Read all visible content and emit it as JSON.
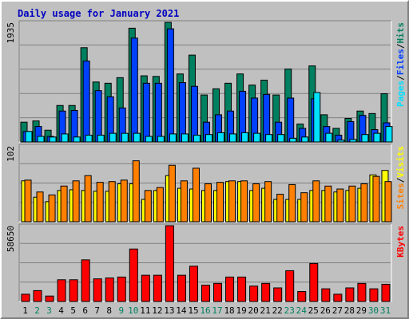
{
  "title": "Daily usage for January 2021",
  "colors": {
    "hits": "#00805f",
    "files": "#0040ff",
    "pages": "#00e0ff",
    "visits": "#ffff00",
    "sites": "#ff8000",
    "kbytes": "#ff0000",
    "weekend_label": "#00805f",
    "weekday_label": "#000000"
  },
  "chart_data": [
    {
      "type": "bar",
      "panel": "top",
      "max_label": "1935",
      "ylim": [
        0,
        1935
      ],
      "legend": [
        "Hits",
        "Files",
        "Pages"
      ],
      "legend_separator": "/",
      "categories": [
        "1",
        "2",
        "3",
        "4",
        "5",
        "6",
        "7",
        "8",
        "9",
        "10",
        "11",
        "12",
        "13",
        "14",
        "15",
        "16",
        "17",
        "18",
        "19",
        "20",
        "21",
        "22",
        "23",
        "24",
        "25",
        "26",
        "27",
        "28",
        "29",
        "30",
        "31"
      ],
      "series": [
        {
          "name": "Hits",
          "values": [
            320,
            340,
            190,
            590,
            590,
            1525,
            970,
            950,
            1040,
            1840,
            1070,
            1060,
            1935,
            1100,
            1405,
            760,
            860,
            950,
            1100,
            920,
            1000,
            760,
            1180,
            290,
            1230,
            440,
            220,
            380,
            500,
            460,
            780
          ]
        },
        {
          "name": "Files",
          "values": [
            170,
            250,
            90,
            500,
            510,
            1310,
            830,
            730,
            550,
            1680,
            950,
            950,
            1830,
            960,
            900,
            320,
            440,
            500,
            820,
            710,
            770,
            320,
            710,
            220,
            700,
            250,
            110,
            330,
            430,
            200,
            310
          ]
        },
        {
          "name": "Pages",
          "values": [
            170,
            90,
            80,
            130,
            80,
            110,
            110,
            140,
            140,
            140,
            90,
            90,
            130,
            130,
            110,
            120,
            150,
            130,
            150,
            140,
            120,
            120,
            60,
            80,
            800,
            140,
            30,
            40,
            120,
            140,
            250
          ]
        }
      ],
      "weekend_days": [
        "2",
        "3",
        "9",
        "10",
        "16",
        "17",
        "23",
        "24",
        "30",
        "31"
      ]
    },
    {
      "type": "bar",
      "panel": "middle",
      "max_label": "102",
      "ylim": [
        0,
        102
      ],
      "legend": [
        "Visits",
        "Sites"
      ],
      "legend_separator": "/",
      "categories": [
        "1",
        "2",
        "3",
        "4",
        "5",
        "6",
        "7",
        "8",
        "9",
        "10",
        "11",
        "12",
        "13",
        "14",
        "15",
        "16",
        "17",
        "18",
        "19",
        "20",
        "21",
        "22",
        "23",
        "24",
        "25",
        "26",
        "27",
        "28",
        "29",
        "30",
        "31"
      ],
      "series": [
        {
          "name": "Visits",
          "values": [
            55,
            33,
            27,
            42,
            43,
            42,
            41,
            41,
            51,
            51,
            30,
            42,
            62,
            45,
            44,
            42,
            42,
            54,
            54,
            42,
            45,
            30,
            30,
            30,
            42,
            42,
            40,
            42,
            45,
            63,
            69
          ]
        },
        {
          "name": "Sites",
          "values": [
            56,
            40,
            36,
            48,
            55,
            62,
            53,
            54,
            56,
            82,
            42,
            46,
            76,
            55,
            72,
            51,
            53,
            55,
            55,
            51,
            54,
            37,
            50,
            39,
            55,
            48,
            44,
            48,
            51,
            61,
            54
          ]
        }
      ]
    },
    {
      "type": "bar",
      "panel": "bottom",
      "max_label": "58650",
      "ylim": [
        0,
        58650
      ],
      "legend": [
        "KBytes"
      ],
      "categories": [
        "1",
        "2",
        "3",
        "4",
        "5",
        "6",
        "7",
        "8",
        "9",
        "10",
        "11",
        "12",
        "13",
        "14",
        "15",
        "16",
        "17",
        "18",
        "19",
        "20",
        "21",
        "22",
        "23",
        "24",
        "25",
        "26",
        "27",
        "28",
        "29",
        "30",
        "31"
      ],
      "series": [
        {
          "name": "KBytes",
          "values": [
            5600,
            8400,
            4200,
            16800,
            16800,
            32200,
            17500,
            18200,
            18900,
            40600,
            20300,
            20300,
            58650,
            20300,
            27300,
            12600,
            14000,
            18900,
            18900,
            11900,
            14000,
            10500,
            23800,
            7700,
            29400,
            9800,
            5600,
            10500,
            14000,
            9800,
            13300
          ]
        }
      ]
    }
  ]
}
